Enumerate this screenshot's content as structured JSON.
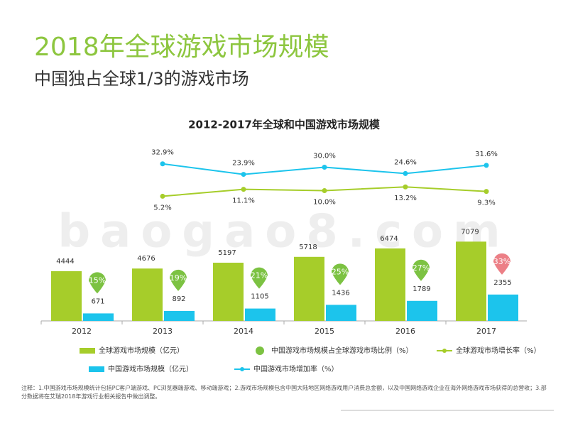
{
  "header": {
    "title": "2018年全球游戏市场规模",
    "subtitle": "中国独占全球1/3的游戏市场"
  },
  "watermark": "baogao8.com",
  "chart_data": {
    "type": "bar",
    "title": "2012-2017年全球和中国游戏市场规模",
    "categories": [
      "2012",
      "2013",
      "2014",
      "2015",
      "2016",
      "2017"
    ],
    "ylim": [
      0,
      9000
    ],
    "y2lim": [
      0,
      50
    ],
    "series": [
      {
        "name": "全球游戏市场规模（亿元）",
        "type": "bar",
        "color": "#a6cd2a",
        "values": [
          4444,
          4676,
          5197,
          5718,
          6474,
          7079
        ]
      },
      {
        "name": "中国游戏市场规模（亿元）",
        "type": "bar",
        "color": "#1cc4ec",
        "values": [
          671,
          892,
          1105,
          1436,
          1789,
          2355
        ]
      },
      {
        "name": "中国游戏市场规模占全球游戏市场比例（%）",
        "type": "badge",
        "color": "#7cc242",
        "colors": [
          "#7cc242",
          "#7cc242",
          "#7cc242",
          "#7cc242",
          "#7cc242",
          "#ec7f86"
        ],
        "values": [
          15,
          19,
          21,
          25,
          27,
          33
        ],
        "value_labels": [
          "15%",
          "19%",
          "21%",
          "25%",
          "27%",
          "33%"
        ]
      },
      {
        "name": "全球游戏市场增长率（%）",
        "type": "line",
        "axis": "y2",
        "color": "#a6cd2a",
        "values": [
          null,
          5.2,
          11.1,
          10.0,
          13.2,
          9.3
        ],
        "value_labels": [
          null,
          "5.2%",
          "11.1%",
          "10.0%",
          "13.2%",
          "9.3%"
        ]
      },
      {
        "name": "中国游戏市场增加率（%）",
        "type": "line",
        "axis": "y2",
        "color": "#1cc4ec",
        "values": [
          null,
          32.9,
          23.9,
          30.0,
          24.6,
          31.6
        ],
        "value_labels": [
          null,
          "32.9%",
          "23.9%",
          "30.0%",
          "24.6%",
          "31.6%"
        ]
      }
    ]
  },
  "note": "注释：1.中国游戏市场规模统计包括PC客户端游戏、PC浏览器端游戏、移动端游戏；2.游戏市场规模包含中国大陆地区网络游戏用户消费总金额，以及中国网络游戏企业在海外网络游戏市场获得的总营收；3.部分数据将在艾瑞2018年游戏行业相关报告中做出调整。"
}
